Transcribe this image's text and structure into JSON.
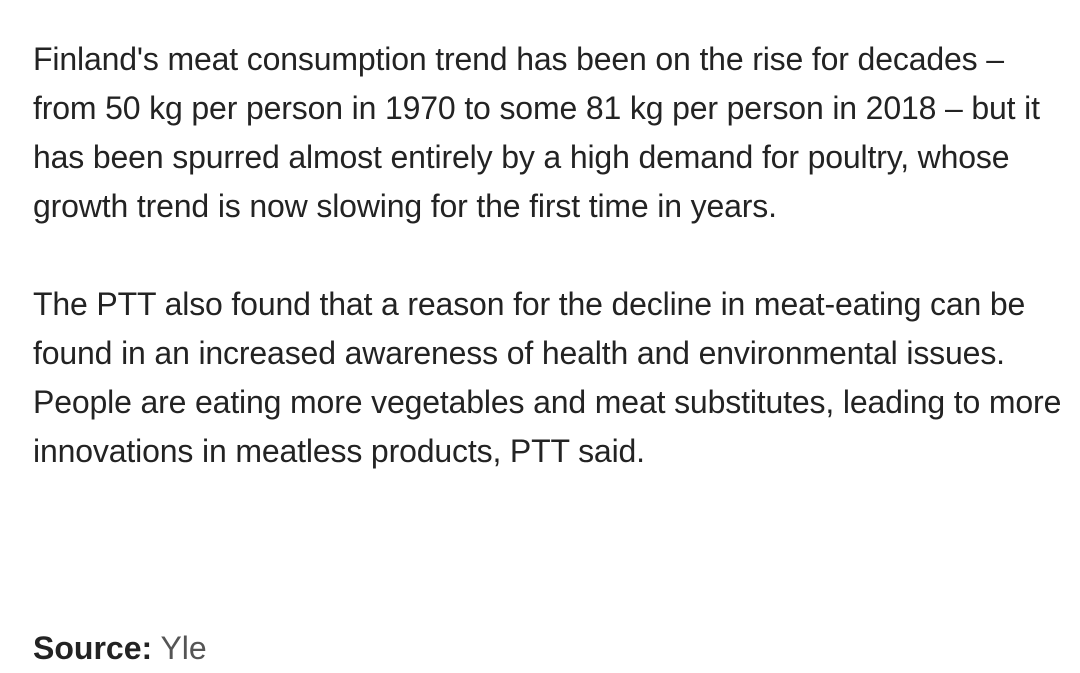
{
  "article": {
    "paragraphs": [
      "Finland's meat consumption trend has been on the rise for decades – from 50 kg per person in 1970 to some 81 kg per person in 2018 – but it has been spurred almost entirely by a high demand for poultry, whose growth trend is now slowing for the first time in years.",
      "The PTT also found that a reason for the decline in meat-eating can be found in an increased awareness of health and environmental issues. People are eating more vegetables and meat substitutes, leading to more innovations in meatless products, PTT said."
    ],
    "source": {
      "label": "Source:",
      "value": "Yle"
    }
  }
}
